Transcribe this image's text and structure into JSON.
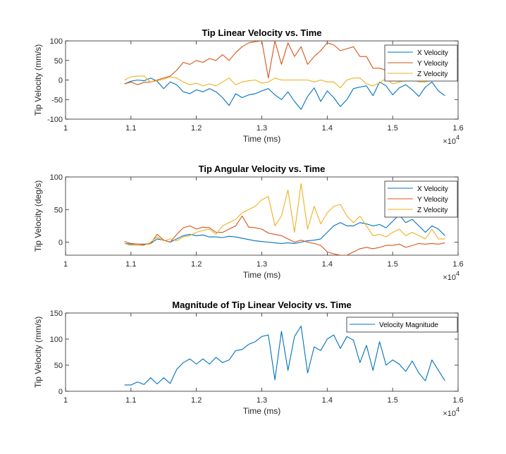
{
  "chart_data": [
    {
      "type": "line",
      "title": "Tip Linear Velocity vs. Time",
      "xlabel": "Time (ms)",
      "ylabel": "Tip Velocity (mm/s)",
      "xlim": [
        10000,
        16000
      ],
      "ylim": [
        -100,
        100
      ],
      "xticks": [
        10000,
        11000,
        12000,
        13000,
        14000,
        15000,
        16000
      ],
      "xtick_labels": [
        "1",
        "1.1",
        "1.2",
        "1.3",
        "1.4",
        "1.5",
        "1.6"
      ],
      "yticks": [
        -100,
        -50,
        0,
        50,
        100
      ],
      "ytick_labels": [
        "-100",
        "-50",
        "0",
        "50",
        "100"
      ],
      "x_exponent": "×10",
      "x_exponent_power": "4",
      "legend_position": "top-right",
      "x": [
        10900,
        11000,
        11100,
        11200,
        11300,
        11400,
        11500,
        11600,
        11700,
        11800,
        11900,
        12000,
        12100,
        12200,
        12300,
        12400,
        12500,
        12600,
        12700,
        12800,
        12900,
        13000,
        13100,
        13200,
        13300,
        13400,
        13500,
        13600,
        13700,
        13800,
        13900,
        14000,
        14100,
        14200,
        14300,
        14400,
        14500,
        14600,
        14700,
        14800,
        14900,
        15000,
        15100,
        15200,
        15300,
        15400,
        15500,
        15600,
        15700,
        15800
      ],
      "series": [
        {
          "name": "X Velocity",
          "color": "#0072BD",
          "values": [
            -10,
            -3,
            0,
            -2,
            5,
            -3,
            -22,
            -5,
            -12,
            -30,
            -35,
            -25,
            -30,
            -22,
            -30,
            -45,
            -65,
            -35,
            -45,
            -38,
            -35,
            -28,
            -22,
            -38,
            -50,
            -30,
            -55,
            -75,
            -42,
            -20,
            -55,
            -28,
            -45,
            -68,
            -50,
            -22,
            -18,
            -15,
            -40,
            -5,
            -15,
            -38,
            -20,
            -12,
            -25,
            -42,
            -18,
            -5,
            -28,
            -40
          ]
        },
        {
          "name": "Y Velocity",
          "color": "#D95319",
          "values": [
            -10,
            -5,
            -12,
            -6,
            -5,
            0,
            5,
            10,
            25,
            45,
            40,
            50,
            45,
            55,
            50,
            65,
            50,
            70,
            85,
            95,
            98,
            100,
            5,
            100,
            40,
            95,
            60,
            85,
            40,
            60,
            75,
            95,
            90,
            75,
            80,
            85,
            60,
            60,
            30,
            30,
            25,
            20,
            25,
            15,
            5,
            30,
            10,
            0,
            5,
            5
          ]
        },
        {
          "name": "Z Velocity",
          "color": "#EDB120",
          "values": [
            0,
            8,
            10,
            10,
            -5,
            -2,
            2,
            8,
            5,
            -5,
            -12,
            -8,
            -15,
            -10,
            -15,
            -5,
            5,
            -12,
            -5,
            -2,
            0,
            -8,
            -5,
            5,
            0,
            0,
            0,
            0,
            0,
            -5,
            0,
            -5,
            -5,
            -20,
            0,
            5,
            5,
            -10,
            -15,
            -8,
            5,
            -10,
            -5,
            0,
            5,
            -5,
            -5,
            0,
            0,
            0
          ]
        }
      ]
    },
    {
      "type": "line",
      "title": "Tip Angular Velocity vs. Time",
      "xlabel": "Time (ms)",
      "ylabel": "Tip Velocity (deg/s)",
      "xlim": [
        10000,
        16000
      ],
      "ylim": [
        -20,
        100
      ],
      "xticks": [
        10000,
        11000,
        12000,
        13000,
        14000,
        15000,
        16000
      ],
      "xtick_labels": [
        "1",
        "1.1",
        "1.2",
        "1.3",
        "1.4",
        "1.5",
        "1.6"
      ],
      "yticks": [
        0,
        50,
        100
      ],
      "ytick_labels": [
        "0",
        "50",
        "100"
      ],
      "x_exponent": "×10",
      "x_exponent_power": "4",
      "legend_position": "top-right",
      "x": [
        10900,
        11000,
        11100,
        11200,
        11300,
        11400,
        11500,
        11600,
        11700,
        11800,
        11900,
        12000,
        12100,
        12200,
        12300,
        12400,
        12500,
        12600,
        12700,
        12800,
        12900,
        13000,
        13100,
        13200,
        13300,
        13400,
        13500,
        13600,
        13700,
        13800,
        13900,
        14000,
        14100,
        14200,
        14300,
        14400,
        14500,
        14600,
        14700,
        14800,
        14900,
        15000,
        15100,
        15200,
        15300,
        15400,
        15500,
        15600,
        15700,
        15800
      ],
      "series": [
        {
          "name": "X Velocity",
          "color": "#0072BD",
          "values": [
            -2,
            -3,
            -3,
            -3,
            -2,
            5,
            3,
            0,
            5,
            10,
            12,
            10,
            11,
            8,
            8,
            7,
            9,
            8,
            6,
            4,
            2,
            1,
            0,
            -1,
            -2,
            -1,
            -2,
            0,
            2,
            3,
            5,
            15,
            25,
            30,
            25,
            25,
            30,
            28,
            25,
            27,
            22,
            32,
            42,
            30,
            35,
            25,
            15,
            25,
            20,
            10
          ]
        },
        {
          "name": "Y Velocity",
          "color": "#D95319",
          "values": [
            1,
            -2,
            -3,
            -4,
            -2,
            12,
            3,
            0,
            12,
            22,
            25,
            20,
            23,
            22,
            15,
            15,
            20,
            25,
            40,
            23,
            22,
            20,
            14,
            12,
            10,
            5,
            0,
            3,
            0,
            -2,
            -5,
            -15,
            -18,
            -20,
            -20,
            -15,
            -10,
            -8,
            -10,
            -8,
            -5,
            -5,
            -3,
            -8,
            -5,
            -2,
            -3,
            -2,
            -3,
            -1
          ]
        },
        {
          "name": "Z Velocity",
          "color": "#EDB120",
          "values": [
            -2,
            -5,
            -5,
            -5,
            0,
            8,
            2,
            5,
            2,
            8,
            10,
            15,
            18,
            20,
            12,
            25,
            30,
            35,
            45,
            50,
            55,
            65,
            70,
            25,
            40,
            80,
            15,
            90,
            20,
            55,
            28,
            45,
            55,
            58,
            40,
            30,
            40,
            25,
            10,
            12,
            8,
            15,
            20,
            10,
            15,
            10,
            5,
            20,
            5,
            5
          ]
        }
      ]
    },
    {
      "type": "line",
      "title": "Magnitude of Tip Linear Velocity vs. Time",
      "xlabel": "Time (ms)",
      "ylabel": "Tip Velocity (mm/s)",
      "xlim": [
        10000,
        16000
      ],
      "ylim": [
        0,
        150
      ],
      "xticks": [
        10000,
        11000,
        12000,
        13000,
        14000,
        15000,
        16000
      ],
      "xtick_labels": [
        "1",
        "1.1",
        "1.2",
        "1.3",
        "1.4",
        "1.5",
        "1.6"
      ],
      "yticks": [
        0,
        50,
        100,
        150
      ],
      "ytick_labels": [
        "0",
        "50",
        "100",
        "150"
      ],
      "x_exponent": "×10",
      "x_exponent_power": "4",
      "legend_position": "top-right",
      "x": [
        10900,
        11000,
        11100,
        11200,
        11300,
        11400,
        11500,
        11600,
        11700,
        11800,
        11900,
        12000,
        12100,
        12200,
        12300,
        12400,
        12500,
        12600,
        12700,
        12800,
        12900,
        13000,
        13100,
        13200,
        13300,
        13400,
        13500,
        13600,
        13700,
        13800,
        13900,
        14000,
        14100,
        14200,
        14300,
        14400,
        14500,
        14600,
        14700,
        14800,
        14900,
        15000,
        15100,
        15200,
        15300,
        15400,
        15500,
        15600,
        15700,
        15800
      ],
      "series": [
        {
          "name": "Velocity Magnitude",
          "color": "#0072BD",
          "values": [
            12,
            12,
            18,
            13,
            26,
            14,
            26,
            15,
            42,
            55,
            62,
            52,
            62,
            52,
            65,
            55,
            60,
            78,
            80,
            90,
            95,
            105,
            108,
            22,
            115,
            40,
            105,
            125,
            35,
            85,
            78,
            100,
            108,
            82,
            105,
            98,
            55,
            88,
            40,
            95,
            50,
            60,
            52,
            38,
            58,
            35,
            20,
            60,
            40,
            20
          ]
        }
      ]
    }
  ]
}
